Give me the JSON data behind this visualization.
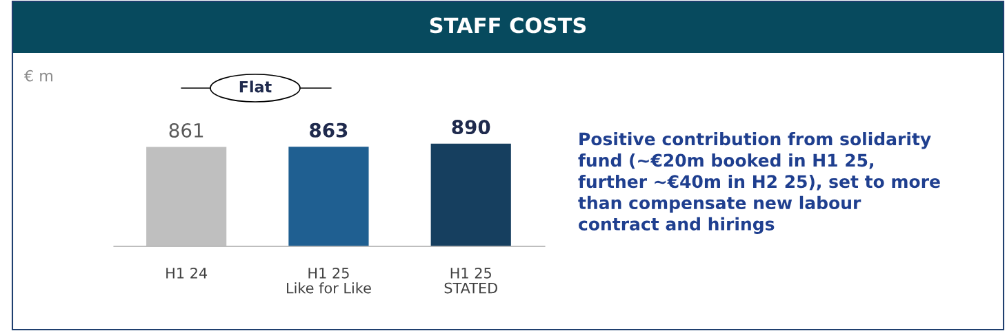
{
  "chart_data": {
    "type": "bar",
    "title": "STAFF COSTS",
    "categories": [
      "H1 24",
      "H1 25\nLike for Like",
      "H1 25\nSTATED"
    ],
    "values": [
      861,
      863,
      890
    ],
    "colors": [
      "#bfbfbf",
      "#1f5f91",
      "#163f5f"
    ],
    "data_labels": true,
    "annotations": [
      "Flat",
      "Positive contribution from solidarity\nfund (~€20m booked in H1 25,\nfurther ~€40m in H2 25), set to more\nthan compensate new labour\ncontract and hirings",
      "€ m"
    ]
  }
}
